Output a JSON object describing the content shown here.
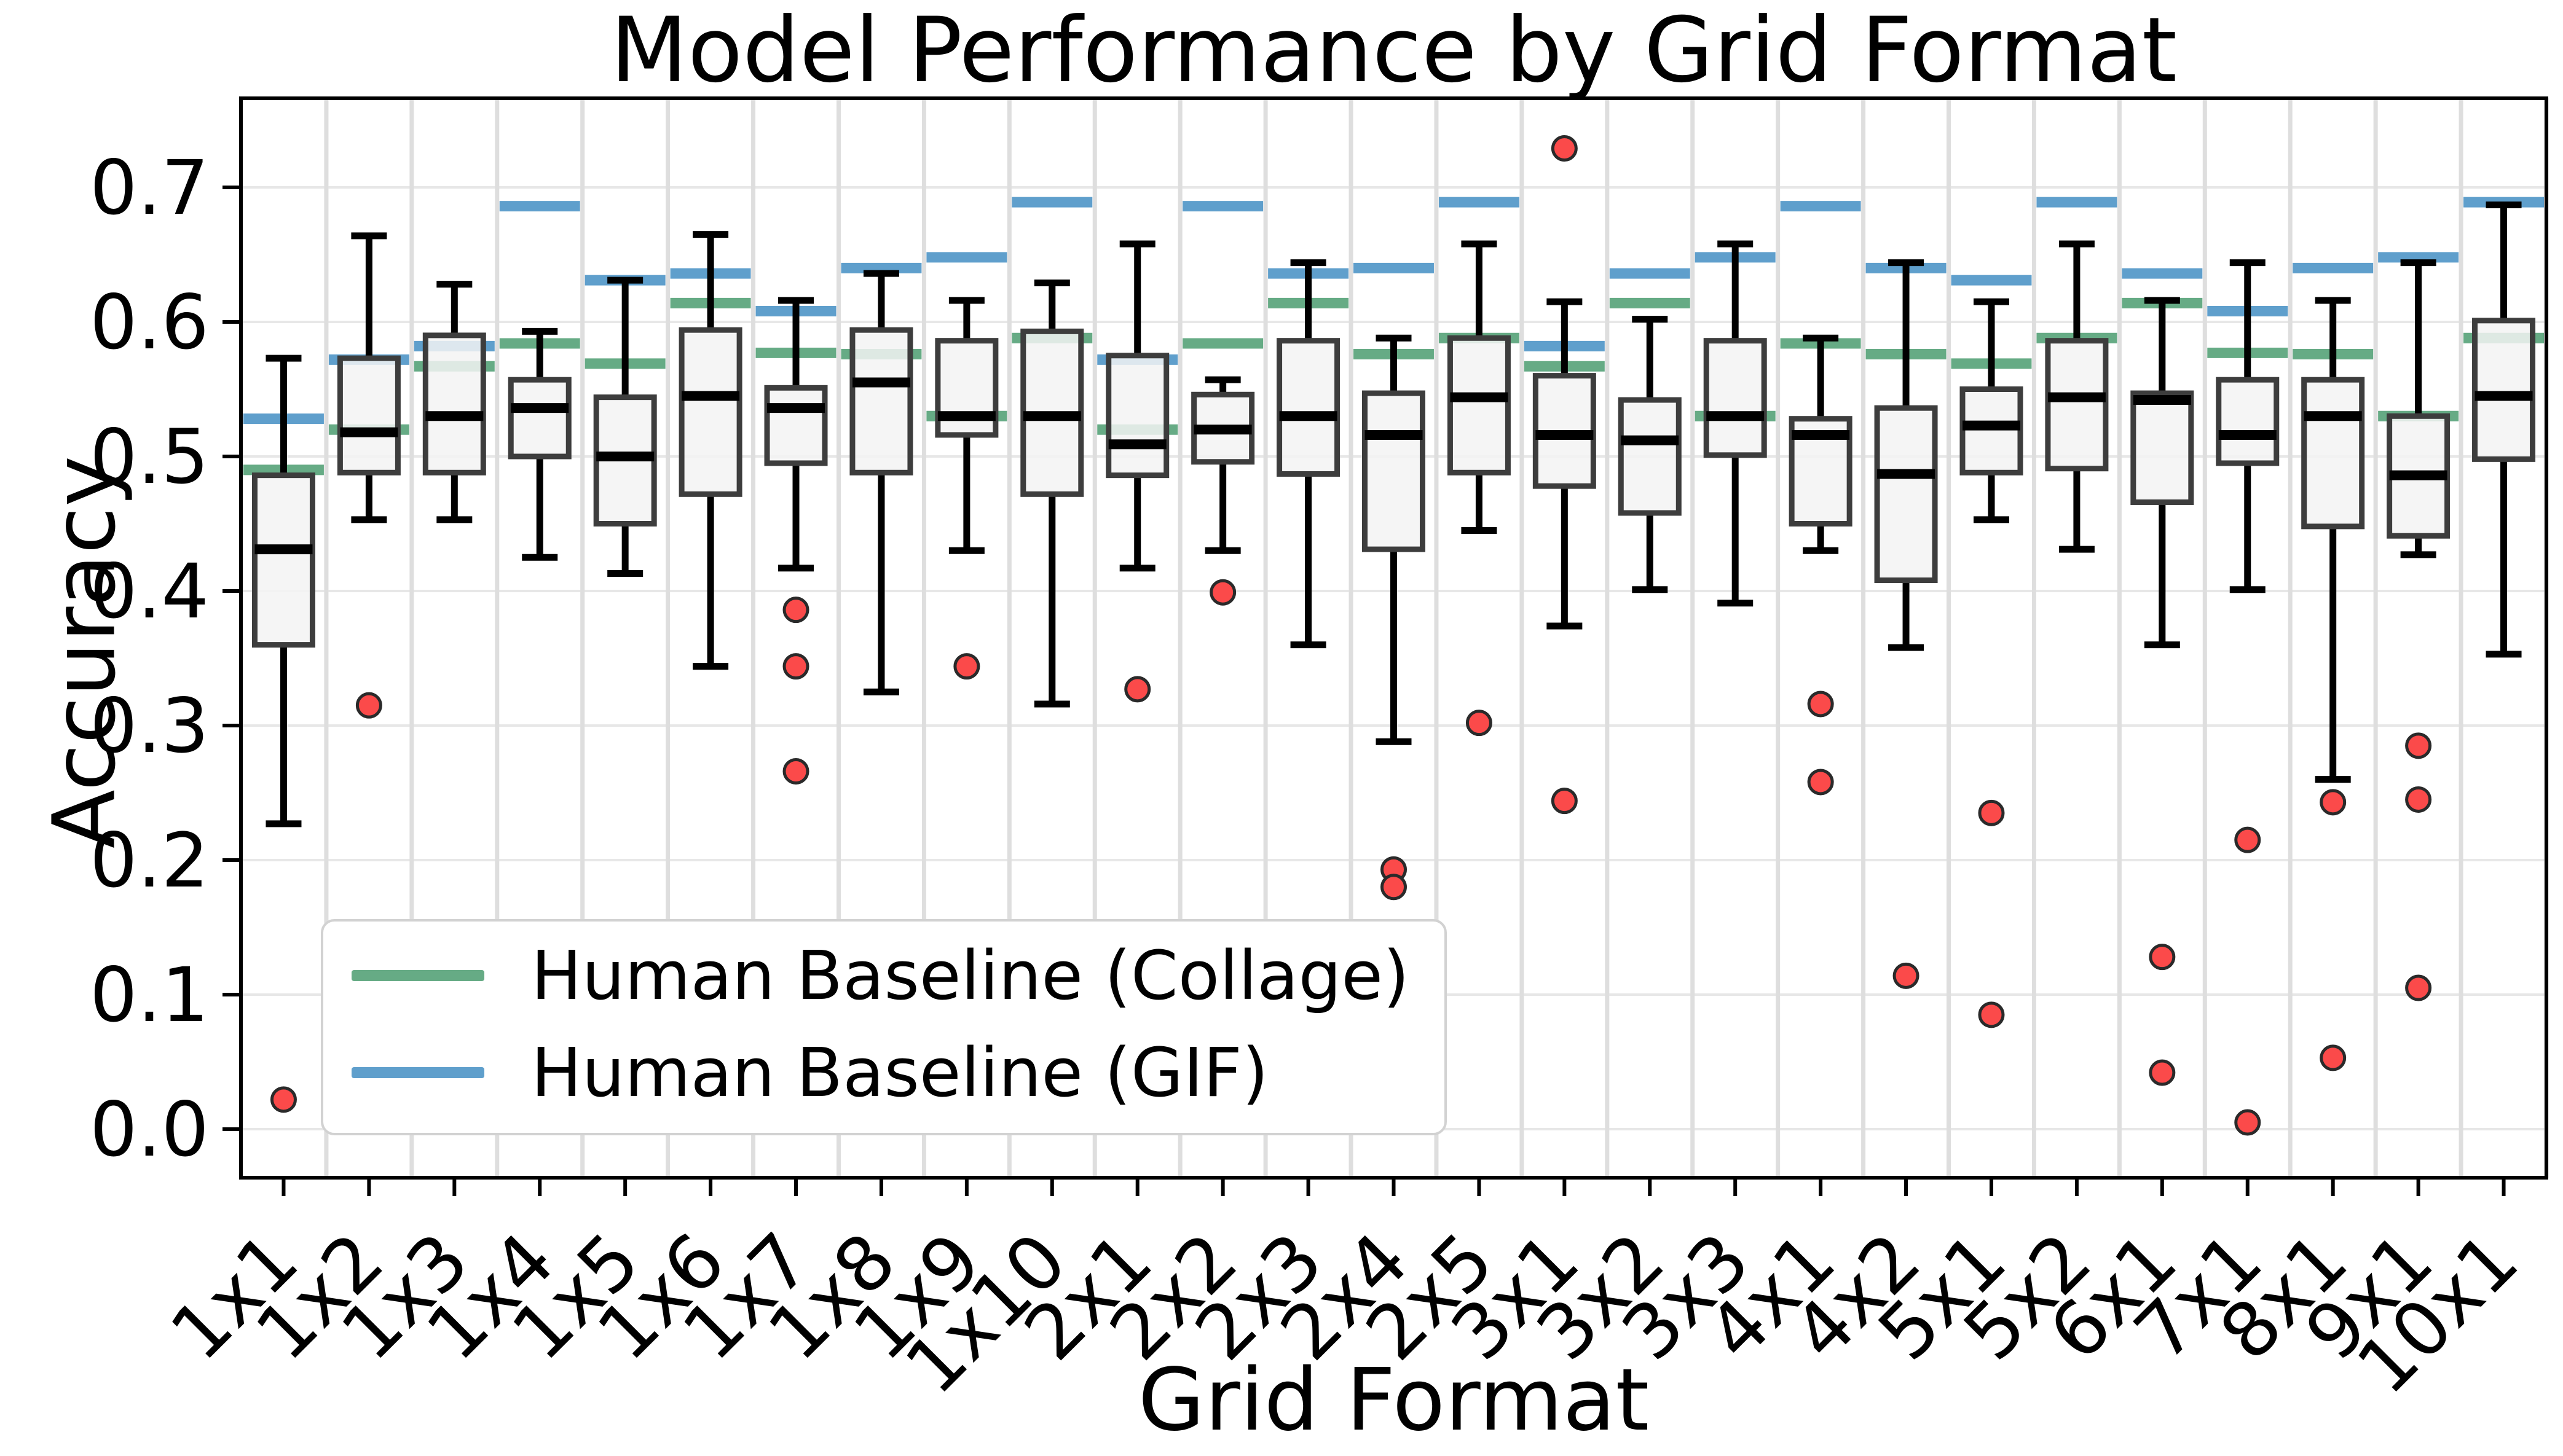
{
  "chart_data": {
    "type": "box",
    "title": "Model Performance by Grid Format",
    "xlabel": "Grid Format",
    "ylabel": "Accuracy",
    "ylim": [
      -0.036,
      0.766
    ],
    "grid": true,
    "yticks": [
      "0.0",
      "0.1",
      "0.2",
      "0.3",
      "0.4",
      "0.5",
      "0.6",
      "0.7"
    ],
    "ytick_values": [
      0.0,
      0.1,
      0.2,
      0.3,
      0.4,
      0.5,
      0.6,
      0.7
    ],
    "categories": [
      "1x1",
      "1x2",
      "1x3",
      "1x4",
      "1x5",
      "1x6",
      "1x7",
      "1x8",
      "1x9",
      "1x10",
      "2x1",
      "2x2",
      "2x3",
      "2x4",
      "2x5",
      "3x1",
      "3x2",
      "3x3",
      "4x1",
      "4x2",
      "5x1",
      "5x2",
      "6x1",
      "7x1",
      "8x1",
      "9x1",
      "10x1"
    ],
    "boxes": [
      {
        "label": "1x1",
        "whislo": 0.227,
        "q1": 0.36,
        "med": 0.431,
        "q3": 0.486,
        "whishi": 0.573,
        "outliers": [
          0.022
        ],
        "gif": 0.528,
        "collage": 0.49
      },
      {
        "label": "1x2",
        "whislo": 0.453,
        "q1": 0.488,
        "med": 0.518,
        "q3": 0.573,
        "whishi": 0.664,
        "outliers": [
          0.315
        ],
        "gif": 0.572,
        "collage": 0.52
      },
      {
        "label": "1x3",
        "whislo": 0.453,
        "q1": 0.488,
        "med": 0.53,
        "q3": 0.59,
        "whishi": 0.628,
        "outliers": [],
        "gif": 0.582,
        "collage": 0.567
      },
      {
        "label": "1x4",
        "whislo": 0.425,
        "q1": 0.5,
        "med": 0.536,
        "q3": 0.557,
        "whishi": 0.593,
        "outliers": [],
        "gif": 0.686,
        "collage": 0.584
      },
      {
        "label": "1x5",
        "whislo": 0.413,
        "q1": 0.45,
        "med": 0.5,
        "q3": 0.544,
        "whishi": 0.631,
        "outliers": [],
        "gif": 0.631,
        "collage": 0.569
      },
      {
        "label": "1x6",
        "whislo": 0.344,
        "q1": 0.472,
        "med": 0.545,
        "q3": 0.594,
        "whishi": 0.665,
        "outliers": [],
        "gif": 0.636,
        "collage": 0.614
      },
      {
        "label": "1x7",
        "whislo": 0.417,
        "q1": 0.495,
        "med": 0.536,
        "q3": 0.551,
        "whishi": 0.616,
        "outliers": [
          0.386,
          0.344,
          0.266
        ],
        "gif": 0.608,
        "collage": 0.577
      },
      {
        "label": "1x8",
        "whislo": 0.325,
        "q1": 0.488,
        "med": 0.555,
        "q3": 0.594,
        "whishi": 0.636,
        "outliers": [],
        "gif": 0.64,
        "collage": 0.576
      },
      {
        "label": "1x9",
        "whislo": 0.43,
        "q1": 0.516,
        "med": 0.53,
        "q3": 0.586,
        "whishi": 0.616,
        "outliers": [
          0.344
        ],
        "gif": 0.648,
        "collage": 0.53
      },
      {
        "label": "1x10",
        "whislo": 0.316,
        "q1": 0.472,
        "med": 0.53,
        "q3": 0.593,
        "whishi": 0.629,
        "outliers": [],
        "gif": 0.689,
        "collage": 0.588
      },
      {
        "label": "2x1",
        "whislo": 0.417,
        "q1": 0.486,
        "med": 0.509,
        "q3": 0.575,
        "whishi": 0.658,
        "outliers": [
          0.327
        ],
        "gif": 0.572,
        "collage": 0.52
      },
      {
        "label": "2x2",
        "whislo": 0.43,
        "q1": 0.496,
        "med": 0.52,
        "q3": 0.546,
        "whishi": 0.557,
        "outliers": [
          0.399
        ],
        "gif": 0.686,
        "collage": 0.584
      },
      {
        "label": "2x3",
        "whislo": 0.36,
        "q1": 0.487,
        "med": 0.53,
        "q3": 0.586,
        "whishi": 0.644,
        "outliers": [],
        "gif": 0.636,
        "collage": 0.614
      },
      {
        "label": "2x4",
        "whislo": 0.288,
        "q1": 0.431,
        "med": 0.516,
        "q3": 0.547,
        "whishi": 0.588,
        "outliers": [
          0.193,
          0.18
        ],
        "gif": 0.64,
        "collage": 0.576
      },
      {
        "label": "2x5",
        "whislo": 0.445,
        "q1": 0.488,
        "med": 0.544,
        "q3": 0.588,
        "whishi": 0.658,
        "outliers": [
          0.302
        ],
        "gif": 0.689,
        "collage": 0.588
      },
      {
        "label": "3x1",
        "whislo": 0.374,
        "q1": 0.478,
        "med": 0.516,
        "q3": 0.56,
        "whishi": 0.615,
        "outliers": [
          0.729,
          0.244
        ],
        "gif": 0.582,
        "collage": 0.567
      },
      {
        "label": "3x2",
        "whislo": 0.401,
        "q1": 0.458,
        "med": 0.512,
        "q3": 0.542,
        "whishi": 0.602,
        "outliers": [],
        "gif": 0.636,
        "collage": 0.614
      },
      {
        "label": "3x3",
        "whislo": 0.391,
        "q1": 0.501,
        "med": 0.53,
        "q3": 0.586,
        "whishi": 0.658,
        "outliers": [],
        "gif": 0.648,
        "collage": 0.53
      },
      {
        "label": "4x1",
        "whislo": 0.43,
        "q1": 0.45,
        "med": 0.516,
        "q3": 0.528,
        "whishi": 0.588,
        "outliers": [
          0.316,
          0.258
        ],
        "gif": 0.686,
        "collage": 0.584
      },
      {
        "label": "4x2",
        "whislo": 0.358,
        "q1": 0.408,
        "med": 0.487,
        "q3": 0.536,
        "whishi": 0.644,
        "outliers": [
          0.114
        ],
        "gif": 0.64,
        "collage": 0.576
      },
      {
        "label": "5x1",
        "whislo": 0.453,
        "q1": 0.488,
        "med": 0.523,
        "q3": 0.55,
        "whishi": 0.615,
        "outliers": [
          0.235,
          0.085
        ],
        "gif": 0.631,
        "collage": 0.569
      },
      {
        "label": "5x2",
        "whislo": 0.431,
        "q1": 0.491,
        "med": 0.544,
        "q3": 0.586,
        "whishi": 0.658,
        "outliers": [],
        "gif": 0.689,
        "collage": 0.588
      },
      {
        "label": "6x1",
        "whislo": 0.36,
        "q1": 0.466,
        "med": 0.542,
        "q3": 0.547,
        "whishi": 0.616,
        "outliers": [
          0.128,
          0.042
        ],
        "gif": 0.636,
        "collage": 0.614
      },
      {
        "label": "7x1",
        "whislo": 0.401,
        "q1": 0.495,
        "med": 0.516,
        "q3": 0.557,
        "whishi": 0.644,
        "outliers": [
          0.215,
          0.005
        ],
        "gif": 0.608,
        "collage": 0.577
      },
      {
        "label": "8x1",
        "whislo": 0.26,
        "q1": 0.448,
        "med": 0.53,
        "q3": 0.557,
        "whishi": 0.616,
        "outliers": [
          0.243,
          0.053
        ],
        "gif": 0.64,
        "collage": 0.576
      },
      {
        "label": "9x1",
        "whislo": 0.427,
        "q1": 0.441,
        "med": 0.486,
        "q3": 0.53,
        "whishi": 0.644,
        "outliers": [
          0.285,
          0.245,
          0.105
        ],
        "gif": 0.648,
        "collage": 0.53
      },
      {
        "label": "10x1",
        "whislo": 0.353,
        "q1": 0.498,
        "med": 0.545,
        "q3": 0.601,
        "whishi": 0.687,
        "outliers": [],
        "gif": 0.689,
        "collage": 0.588
      }
    ],
    "legend_position": "lower left"
  },
  "legend": {
    "items": [
      {
        "label": "Human Baseline (Collage)",
        "color": "#66ab85"
      },
      {
        "label": "Human Baseline (GIF)",
        "color": "#5f9fcc"
      }
    ]
  },
  "colors": {
    "collage_green": "#66ab85",
    "gif_blue": "#5f9fcc",
    "outlier_red": "#fb4a4a",
    "outlier_edge": "#2a2a2a",
    "box_fill": "#f3f3f3",
    "box_edge": "#3d3d3d",
    "median_black": "#000000",
    "grid_h": "#e7e7e7",
    "grid_v": "#dedede",
    "axis_black": "#000000"
  }
}
